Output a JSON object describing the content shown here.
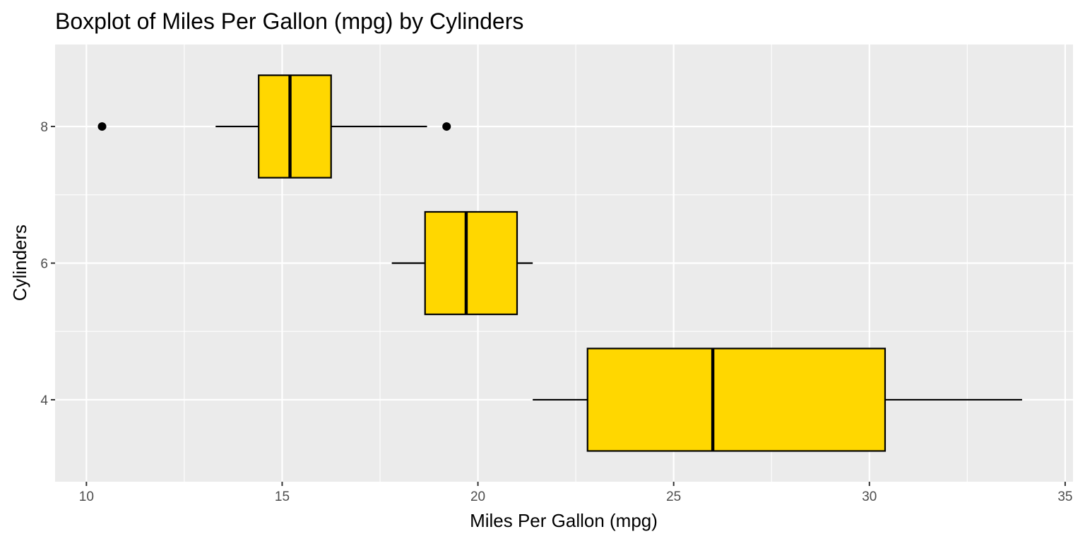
{
  "chart_data": {
    "type": "boxplot",
    "orientation": "horizontal",
    "title": "Boxplot of Miles Per Gallon (mpg) by Cylinders",
    "xlabel": "Miles Per Gallon (mpg)",
    "ylabel": "Cylinders",
    "xlim": [
      9.2,
      35.2
    ],
    "ylim": [
      2.8,
      9.2
    ],
    "x_ticks": [
      10,
      15,
      20,
      25,
      30,
      35
    ],
    "y_ticks": [
      4,
      6,
      8
    ],
    "grid": true,
    "legend": "none",
    "box_fill": "#FFD700",
    "box_stroke": "#000000",
    "panel_background": "#EBEBEB",
    "grid_color": "#FFFFFF",
    "groups": [
      {
        "category": 4,
        "whisker_low": 21.4,
        "q1": 22.8,
        "median": 26.0,
        "q3": 30.4,
        "whisker_high": 33.9,
        "outliers": []
      },
      {
        "category": 6,
        "whisker_low": 17.8,
        "q1": 18.65,
        "median": 19.7,
        "q3": 21.0,
        "whisker_high": 21.4,
        "outliers": []
      },
      {
        "category": 8,
        "whisker_low": 13.3,
        "q1": 14.4,
        "median": 15.2,
        "q3": 16.25,
        "whisker_high": 18.7,
        "outliers": [
          10.4,
          19.2
        ]
      }
    ]
  }
}
